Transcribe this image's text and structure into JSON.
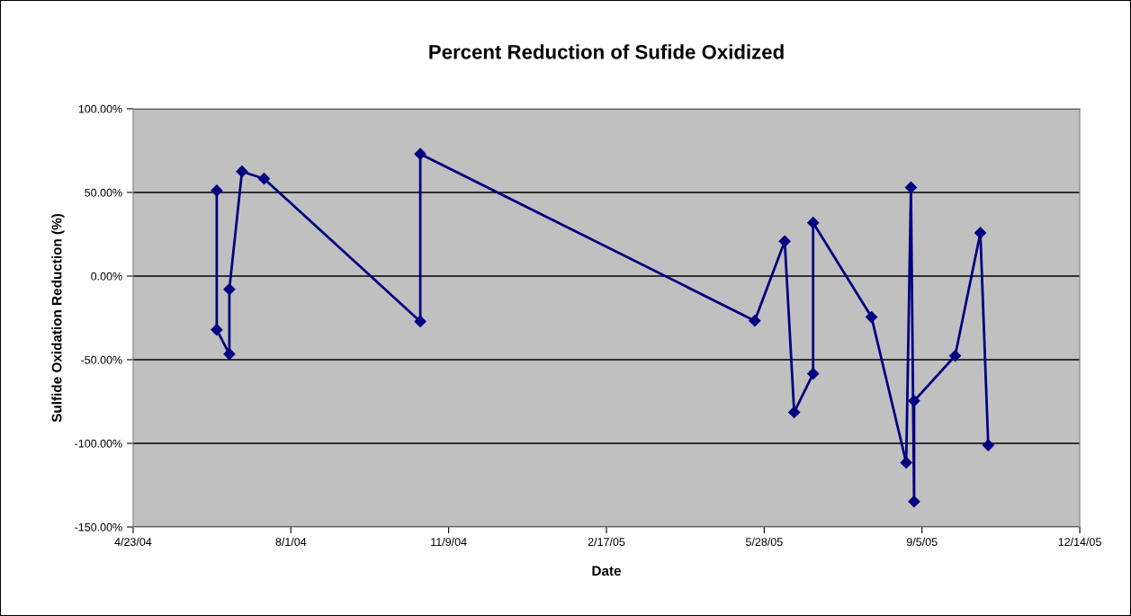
{
  "chart_data": {
    "type": "line",
    "title": "Percent Reduction of Sufide Oxidized",
    "xlabel": "Date",
    "ylabel": "Sulfide Oxidation Reduction (%)",
    "x": [
      "2004-06-15",
      "2004-06-15",
      "2004-06-23",
      "2004-06-23",
      "2004-07-01",
      "2004-07-15",
      "2004-10-22",
      "2004-10-22",
      "2005-05-22",
      "2005-06-10",
      "2005-06-16",
      "2005-06-28",
      "2005-06-28",
      "2005-08-04",
      "2005-08-26",
      "2005-08-29",
      "2005-08-31",
      "2005-08-31",
      "2005-09-26",
      "2005-10-12",
      "2005-10-17"
    ],
    "series": [
      {
        "color": "#000080",
        "values": [
          51.1,
          -32.1,
          -46.6,
          -7.9,
          62.5,
          58.2,
          -27.1,
          73.0,
          -26.7,
          20.8,
          -81.4,
          -58.4,
          31.9,
          -24.5,
          -111.5,
          53.0,
          -134.8,
          -74.6,
          -47.7,
          25.8,
          -101.1
        ]
      }
    ],
    "xlim": [
      "2004-04-23",
      "2005-12-14"
    ],
    "xticks": [
      {
        "value": "2004-04-23",
        "label": "4/23/04"
      },
      {
        "value": "2004-08-01",
        "label": "8/1/04"
      },
      {
        "value": "2004-11-09",
        "label": "11/9/04"
      },
      {
        "value": "2005-02-17",
        "label": "2/17/05"
      },
      {
        "value": "2005-05-28",
        "label": "5/28/05"
      },
      {
        "value": "2005-09-05",
        "label": "9/5/05"
      },
      {
        "value": "2005-12-14",
        "label": "12/14/05"
      }
    ],
    "ylim": [
      -150,
      100
    ],
    "yticks": [
      {
        "value": -150,
        "label": "-150.00%"
      },
      {
        "value": -100,
        "label": "-100.00%"
      },
      {
        "value": -50,
        "label": "-50.00%"
      },
      {
        "value": 0,
        "label": "0.00%"
      },
      {
        "value": 50,
        "label": "50.00%"
      },
      {
        "value": 100,
        "label": "100.00%"
      }
    ],
    "grid": "y",
    "marker": "diamond",
    "line_style": "solid"
  }
}
